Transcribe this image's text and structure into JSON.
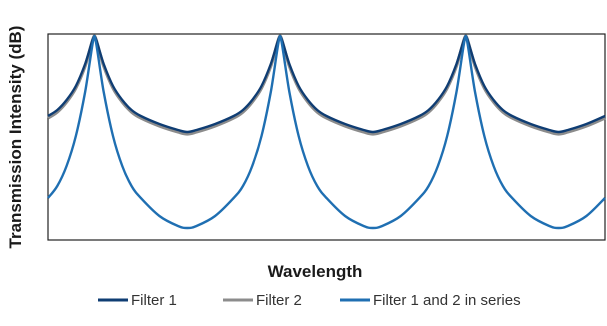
{
  "chart_data": {
    "type": "line",
    "xlabel": "Wavelength",
    "ylabel": "Transmission Intensity (dB)",
    "xlim": [
      0,
      3
    ],
    "ylim": [
      0,
      1
    ],
    "grid": false,
    "legend_position": "bottom",
    "peaks_x": [
      0.25,
      1.25,
      2.25
    ],
    "series": [
      {
        "name": "Filter 1",
        "color": "#0f3d73",
        "x": [
          0,
          0.05,
          0.1,
          0.15,
          0.2,
          0.25,
          0.3,
          0.35,
          0.4,
          0.45,
          0.5,
          0.6,
          0.7,
          0.75,
          0.8,
          0.9,
          1.0,
          1.05,
          1.1,
          1.15,
          1.2,
          1.25,
          1.3,
          1.35,
          1.4,
          1.45,
          1.5,
          1.6,
          1.7,
          1.75,
          1.8,
          1.9,
          2.0,
          2.05,
          2.1,
          2.15,
          2.2,
          2.25,
          2.3,
          2.35,
          2.4,
          2.45,
          2.5,
          2.6,
          2.7,
          2.75,
          2.8,
          2.9,
          3.0
        ],
        "y": [
          0.6,
          0.63,
          0.68,
          0.75,
          0.86,
          1.0,
          0.86,
          0.75,
          0.68,
          0.63,
          0.6,
          0.56,
          0.53,
          0.52,
          0.53,
          0.56,
          0.6,
          0.63,
          0.68,
          0.75,
          0.86,
          1.0,
          0.86,
          0.75,
          0.68,
          0.63,
          0.6,
          0.56,
          0.53,
          0.52,
          0.53,
          0.56,
          0.6,
          0.63,
          0.68,
          0.75,
          0.86,
          1.0,
          0.86,
          0.75,
          0.68,
          0.63,
          0.6,
          0.56,
          0.53,
          0.52,
          0.53,
          0.56,
          0.6
        ]
      },
      {
        "name": "Filter 2",
        "color": "#8c8c8c",
        "x": [
          0,
          0.05,
          0.1,
          0.15,
          0.2,
          0.25,
          0.3,
          0.35,
          0.4,
          0.45,
          0.5,
          0.6,
          0.7,
          0.75,
          0.8,
          0.9,
          1.0,
          1.05,
          1.1,
          1.15,
          1.2,
          1.25,
          1.3,
          1.35,
          1.4,
          1.45,
          1.5,
          1.6,
          1.7,
          1.75,
          1.8,
          1.9,
          2.0,
          2.05,
          2.1,
          2.15,
          2.2,
          2.25,
          2.3,
          2.35,
          2.4,
          2.45,
          2.5,
          2.6,
          2.7,
          2.75,
          2.8,
          2.9,
          3.0
        ],
        "y": [
          0.59,
          0.62,
          0.67,
          0.74,
          0.85,
          1.0,
          0.85,
          0.74,
          0.67,
          0.62,
          0.59,
          0.55,
          0.52,
          0.51,
          0.52,
          0.55,
          0.59,
          0.62,
          0.67,
          0.74,
          0.85,
          1.0,
          0.85,
          0.74,
          0.67,
          0.62,
          0.59,
          0.55,
          0.52,
          0.51,
          0.52,
          0.55,
          0.59,
          0.62,
          0.67,
          0.74,
          0.85,
          1.0,
          0.85,
          0.74,
          0.67,
          0.62,
          0.59,
          0.55,
          0.52,
          0.51,
          0.52,
          0.55,
          0.59
        ]
      },
      {
        "name": "Filter 1 and 2 in series",
        "color": "#1f6fb2",
        "x": [
          0,
          0.05,
          0.1,
          0.15,
          0.2,
          0.25,
          0.3,
          0.35,
          0.4,
          0.45,
          0.5,
          0.6,
          0.7,
          0.75,
          0.8,
          0.9,
          1.0,
          1.05,
          1.1,
          1.15,
          1.2,
          1.25,
          1.3,
          1.35,
          1.4,
          1.45,
          1.5,
          1.6,
          1.7,
          1.75,
          1.8,
          1.9,
          2.0,
          2.05,
          2.1,
          2.15,
          2.2,
          2.25,
          2.3,
          2.35,
          2.4,
          2.45,
          2.5,
          2.6,
          2.7,
          2.75,
          2.8,
          2.9,
          3.0
        ],
        "y": [
          0.19,
          0.25,
          0.35,
          0.5,
          0.72,
          1.0,
          0.72,
          0.5,
          0.35,
          0.25,
          0.19,
          0.1,
          0.05,
          0.04,
          0.05,
          0.1,
          0.19,
          0.25,
          0.35,
          0.5,
          0.72,
          1.0,
          0.72,
          0.5,
          0.35,
          0.25,
          0.19,
          0.1,
          0.05,
          0.04,
          0.05,
          0.1,
          0.19,
          0.25,
          0.35,
          0.5,
          0.72,
          1.0,
          0.72,
          0.5,
          0.35,
          0.25,
          0.19,
          0.1,
          0.05,
          0.04,
          0.05,
          0.1,
          0.19
        ]
      }
    ]
  }
}
